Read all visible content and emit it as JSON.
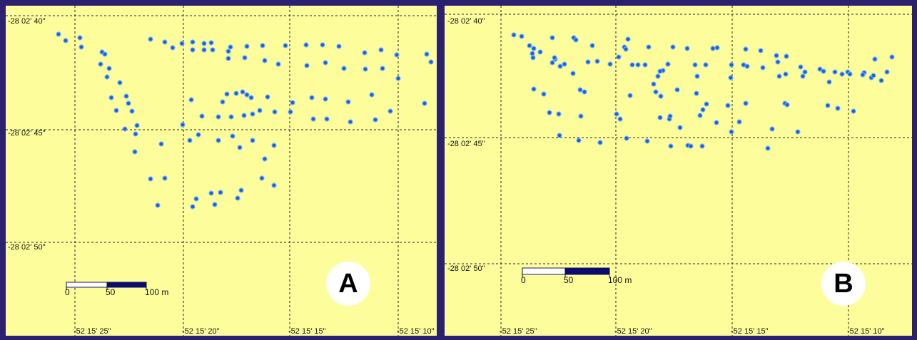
{
  "colors": {
    "background_frame": "#2b2170",
    "map_fill": "#fdfd9c",
    "point_fill": "#1e5fd9",
    "point_outline": "#6fb5ff",
    "scale_dark": "#0e0b6e"
  },
  "panels": [
    {
      "id": "a",
      "badge": "A",
      "lat_labels": [
        "-28 02' 40\"",
        "-28 02' 45\"",
        "-28 02' 50\""
      ],
      "lon_labels": [
        "-52 15' 25\"",
        "-52 15' 20\"",
        "-52 15' 15\"",
        "-52 15' 10\""
      ],
      "scale_labels": [
        "0",
        "50",
        "100 m"
      ],
      "point_count": 123
    },
    {
      "id": "b",
      "badge": "B",
      "lat_labels": [
        "-28 02' 40\"",
        "-28 02' 45\"",
        "-28 02' 50\""
      ],
      "lon_labels": [
        "-52 15' 25\"",
        "-52 15' 20\"",
        "-52 15' 15\"",
        "-52 15' 10\""
      ],
      "scale_labels": [
        "0",
        "50",
        "100 m"
      ],
      "point_count": 120
    }
  ]
}
